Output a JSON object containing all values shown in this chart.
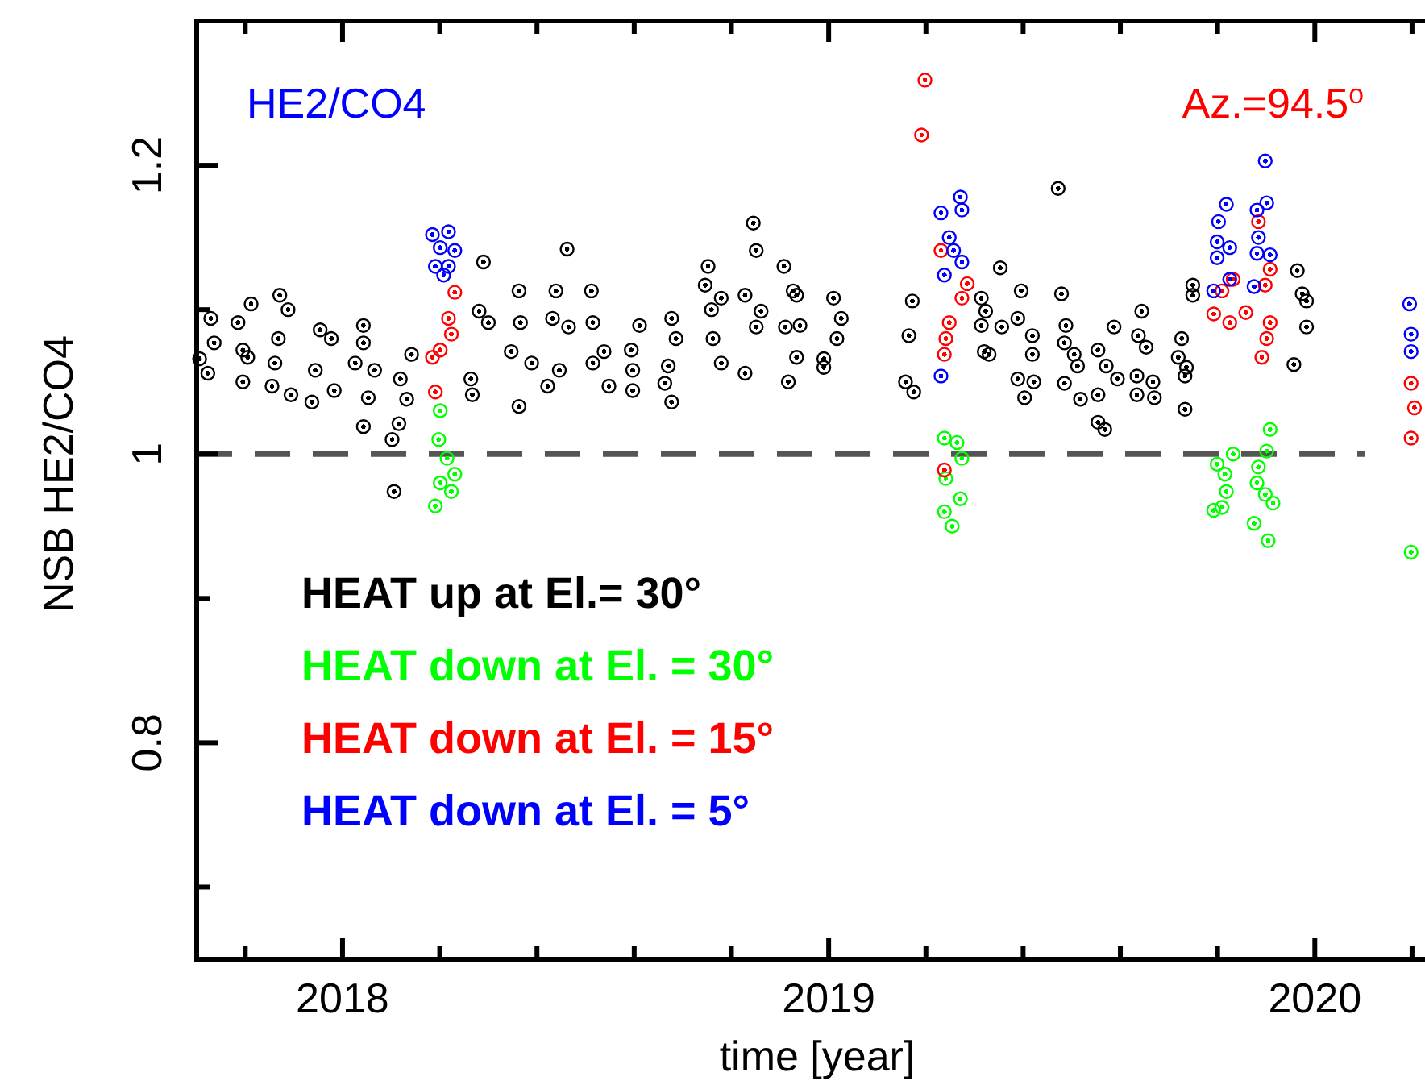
{
  "chart_data": {
    "type": "scatter",
    "xlabel": "time [year]",
    "ylabel": "NSB HE2/CO4",
    "annotations": [
      "HE2/CO4",
      "Az.=94.5$^{o}$"
    ],
    "xlim": [
      2017.7,
      2020.22
    ],
    "ylim": [
      0.65,
      1.3
    ],
    "xticks": [
      {
        "value": 2017.8,
        "label": null
      },
      2018,
      {
        "value": 2018.2,
        "label": null
      },
      {
        "value": 2018.4,
        "label": null
      },
      {
        "value": 2018.6,
        "label": null
      },
      {
        "value": 2018.8,
        "label": null
      },
      2019,
      {
        "value": 2019.2,
        "label": null
      },
      {
        "value": 2019.4,
        "label": null
      },
      {
        "value": 2019.6,
        "label": null
      },
      {
        "value": 2019.8,
        "label": null
      },
      2020,
      {
        "value": 2020.2,
        "label": null
      }
    ],
    "yticks": [
      {
        "value": 0.7,
        "label": null
      },
      0.8,
      {
        "value": 0.9,
        "label": null
      },
      1,
      {
        "value": 1.1,
        "label": null
      },
      1.2
    ],
    "ref_lines": [
      {
        "axis": "y",
        "value": 1,
        "label": null,
        "color": "#555555",
        "line_style": "dashed"
      }
    ],
    "grid": false,
    "legend": "bottom left",
    "marker": "circle",
    "series": [
      {
        "name": "HEAT up at El.= 30°",
        "color": "#000000",
        "x": [
          2017.706,
          2017.729,
          2017.736,
          2017.723,
          2017.785,
          2017.795,
          2017.795,
          2017.812,
          2017.805,
          2017.871,
          2017.888,
          2017.868,
          2017.861,
          2017.855,
          2017.894,
          2017.954,
          2017.944,
          2017.937,
          2017.977,
          2017.983,
          2018.043,
          2018.043,
          2018.026,
          2018.066,
          2018.053,
          2018.043,
          2018.142,
          2018.119,
          2018.132,
          2018.116,
          2018.102,
          2018.106,
          2018.29,
          2018.281,
          2018.3,
          2018.264,
          2018.267,
          2018.363,
          2018.366,
          2018.347,
          2018.389,
          2018.363,
          2018.439,
          2018.432,
          2018.465,
          2018.446,
          2018.422,
          2018.462,
          2018.512,
          2018.515,
          2018.538,
          2018.515,
          2018.548,
          2018.611,
          2018.594,
          2018.597,
          2018.597,
          2018.677,
          2018.686,
          2018.67,
          2018.663,
          2018.677,
          2018.752,
          2018.746,
          2018.759,
          2018.779,
          2018.762,
          2018.779,
          2018.845,
          2018.851,
          2018.828,
          2018.851,
          2018.828,
          2018.861,
          2018.908,
          2018.927,
          2018.911,
          2018.934,
          2018.917,
          2018.934,
          2018.941,
          2019.01,
          2019.026,
          2019.017,
          2018.99,
          2018.99,
          2019.172,
          2019.165,
          2019.158,
          2019.175,
          2019.314,
          2019.353,
          2019.323,
          2019.314,
          2019.356,
          2019.32,
          2019.33,
          2019.396,
          2019.389,
          2019.419,
          2019.419,
          2019.389,
          2019.422,
          2019.403,
          2019.472,
          2019.479,
          2019.488,
          2019.485,
          2019.505,
          2019.512,
          2019.485,
          2019.518,
          2019.554,
          2019.587,
          2019.571,
          2019.594,
          2019.554,
          2019.554,
          2019.568,
          2019.644,
          2019.637,
          2019.653,
          2019.634,
          2019.667,
          2019.634,
          2019.67,
          2019.726,
          2019.719,
          2019.736,
          2019.733,
          2019.733,
          2019.749,
          2019.749,
          2019.964,
          2019.974,
          2019.983,
          2019.983,
          2019.957
        ],
        "values": [
          1.066,
          1.094,
          1.077,
          1.056,
          1.091,
          1.072,
          1.05,
          1.104,
          1.067,
          1.11,
          1.1,
          1.08,
          1.063,
          1.047,
          1.041,
          1.086,
          1.058,
          1.036,
          1.08,
          1.044,
          1.089,
          1.077,
          1.063,
          1.058,
          1.039,
          1.019,
          1.069,
          1.052,
          1.038,
          1.021,
          1.01,
          0.974,
          1.133,
          1.099,
          1.091,
          1.052,
          1.041,
          1.113,
          1.091,
          1.071,
          1.063,
          1.033,
          1.113,
          1.094,
          1.088,
          1.058,
          1.047,
          1.142,
          1.113,
          1.091,
          1.071,
          1.063,
          1.047,
          1.089,
          1.072,
          1.058,
          1.044,
          1.094,
          1.08,
          1.061,
          1.049,
          1.036,
          1.13,
          1.117,
          1.1,
          1.108,
          1.08,
          1.063,
          1.16,
          1.141,
          1.11,
          1.088,
          1.056,
          1.099,
          1.13,
          1.113,
          1.088,
          1.067,
          1.05,
          1.11,
          1.089,
          1.108,
          1.094,
          1.08,
          1.066,
          1.06,
          1.106,
          1.082,
          1.05,
          1.043,
          1.108,
          1.129,
          1.099,
          1.089,
          1.088,
          1.071,
          1.069,
          1.113,
          1.094,
          1.082,
          1.069,
          1.052,
          1.05,
          1.039,
          1.184,
          1.111,
          1.089,
          1.077,
          1.069,
          1.061,
          1.049,
          1.038,
          1.072,
          1.088,
          1.061,
          1.052,
          1.041,
          1.022,
          1.017,
          1.099,
          1.082,
          1.074,
          1.054,
          1.05,
          1.041,
          1.039,
          1.08,
          1.067,
          1.06,
          1.054,
          1.031,
          1.117,
          1.11,
          1.127,
          1.111,
          1.106,
          1.088,
          1.062
        ]
      },
      {
        "name": "HEAT down at El. = 30°",
        "color": "#00ff00",
        "x": [
          2018.201,
          2018.198,
          2018.215,
          2018.231,
          2018.201,
          2018.224,
          2018.191,
          2019.238,
          2019.264,
          2019.274,
          2019.241,
          2019.271,
          2019.238,
          2019.254,
          2019.799,
          2019.832,
          2019.815,
          2019.818,
          2019.792,
          2019.809,
          2019.908,
          2019.901,
          2019.884,
          2019.881,
          2019.898,
          2019.914,
          2019.875,
          2019.904,
          2020.198
        ],
        "values": [
          1.03,
          1.01,
          0.997,
          0.986,
          0.98,
          0.974,
          0.964,
          1.011,
          1.008,
          0.997,
          0.983,
          0.969,
          0.96,
          0.95,
          0.993,
          1.0,
          0.986,
          0.974,
          0.961,
          0.963,
          1.017,
          1.002,
          0.991,
          0.98,
          0.972,
          0.966,
          0.952,
          0.94,
          0.932
        ]
      },
      {
        "name": "HEAT down at El. = 15°",
        "color": "#ff0000",
        "x": [
          2018.231,
          2018.218,
          2018.224,
          2018.201,
          2018.185,
          2018.191,
          2019.198,
          2019.191,
          2019.231,
          2019.285,
          2019.274,
          2019.248,
          2019.241,
          2019.238,
          2019.238,
          2019.792,
          2019.825,
          2019.809,
          2019.832,
          2019.858,
          2019.898,
          2019.908,
          2019.884,
          2019.908,
          2019.901,
          2019.891,
          2020.198,
          2020.205,
          2020.198
        ],
        "values": [
          1.112,
          1.094,
          1.083,
          1.072,
          1.067,
          1.043,
          1.259,
          1.221,
          1.141,
          1.118,
          1.108,
          1.091,
          1.08,
          1.069,
          0.989,
          1.097,
          1.091,
          1.113,
          1.121,
          1.098,
          1.117,
          1.128,
          1.161,
          1.091,
          1.08,
          1.067,
          1.049,
          1.032,
          1.011
        ]
      },
      {
        "name": "HEAT down at El. = 5°",
        "color": "#0000ff",
        "x": [
          2018.185,
          2018.218,
          2018.201,
          2018.231,
          2018.191,
          2018.218,
          2018.208,
          2019.231,
          2019.271,
          2019.274,
          2019.248,
          2019.257,
          2019.238,
          2019.274,
          2019.231,
          2019.818,
          2019.802,
          2019.799,
          2019.825,
          2019.799,
          2019.825,
          2019.792,
          2019.898,
          2019.901,
          2019.881,
          2019.884,
          2019.881,
          2019.908,
          2019.875,
          2020.195,
          2020.198,
          2020.198
        ],
        "values": [
          1.152,
          1.154,
          1.143,
          1.141,
          1.13,
          1.13,
          1.124,
          1.167,
          1.178,
          1.169,
          1.15,
          1.141,
          1.124,
          1.133,
          1.054,
          1.173,
          1.161,
          1.147,
          1.143,
          1.136,
          1.121,
          1.113,
          1.203,
          1.174,
          1.169,
          1.15,
          1.139,
          1.138,
          1.116,
          1.104,
          1.083,
          1.071
        ]
      }
    ]
  }
}
